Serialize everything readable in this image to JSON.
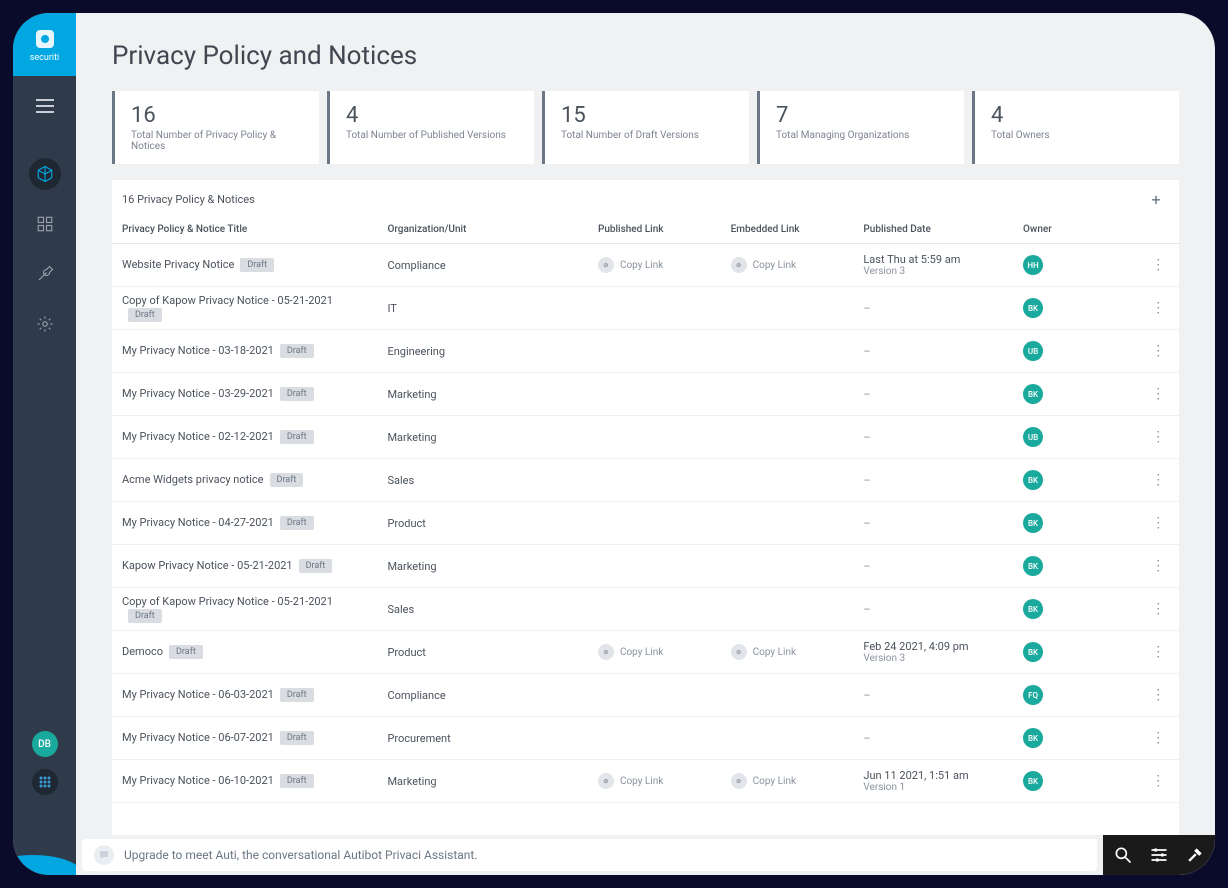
{
  "brand": {
    "name": "securiti"
  },
  "page": {
    "title": "Privacy Policy and Notices"
  },
  "stats": [
    {
      "value": "16",
      "label": "Total Number of Privacy Policy & Notices"
    },
    {
      "value": "4",
      "label": "Total Number of Published Versions"
    },
    {
      "value": "15",
      "label": "Total Number of Draft Versions"
    },
    {
      "value": "7",
      "label": "Total Managing Organizations"
    },
    {
      "value": "4",
      "label": "Total Owners"
    }
  ],
  "table": {
    "caption": "16 Privacy Policy & Notices",
    "columns": [
      "Privacy Policy & Notice Title",
      "Organization/Unit",
      "Published Link",
      "Embedded Link",
      "Published Date",
      "Owner"
    ],
    "copy_link_label": "Copy Link",
    "rows": [
      {
        "title": "Website Privacy Notice",
        "tag": "Draft",
        "org": "Compliance",
        "pub": true,
        "emb": true,
        "date": "Last Thu at 5:59 am",
        "version": "Version 3",
        "owner": "HH"
      },
      {
        "title": "Copy of Kapow Privacy Notice - 05-21-2021",
        "tag": "Draft",
        "org": "IT",
        "pub": false,
        "emb": false,
        "date": "–",
        "version": "",
        "owner": "BK"
      },
      {
        "title": "My Privacy Notice - 03-18-2021",
        "tag": "Draft",
        "org": "Engineering",
        "pub": false,
        "emb": false,
        "date": "–",
        "version": "",
        "owner": "UB"
      },
      {
        "title": "My Privacy Notice - 03-29-2021",
        "tag": "Draft",
        "org": "Marketing",
        "pub": false,
        "emb": false,
        "date": "–",
        "version": "",
        "owner": "BK"
      },
      {
        "title": "My Privacy Notice - 02-12-2021",
        "tag": "Draft",
        "org": "Marketing",
        "pub": false,
        "emb": false,
        "date": "–",
        "version": "",
        "owner": "UB"
      },
      {
        "title": "Acme Widgets privacy notice",
        "tag": "Draft",
        "org": "Sales",
        "pub": false,
        "emb": false,
        "date": "–",
        "version": "",
        "owner": "BK"
      },
      {
        "title": "My Privacy Notice - 04-27-2021",
        "tag": "Draft",
        "org": "Product",
        "pub": false,
        "emb": false,
        "date": "–",
        "version": "",
        "owner": "BK"
      },
      {
        "title": "Kapow Privacy Notice - 05-21-2021",
        "tag": "Draft",
        "org": "Marketing",
        "pub": false,
        "emb": false,
        "date": "–",
        "version": "",
        "owner": "BK"
      },
      {
        "title": "Copy of Kapow Privacy Notice - 05-21-2021",
        "tag": "Draft",
        "org": "Sales",
        "pub": false,
        "emb": false,
        "date": "–",
        "version": "",
        "owner": "BK"
      },
      {
        "title": "Democo",
        "tag": "Draft",
        "org": "Product",
        "pub": true,
        "emb": true,
        "date": "Feb 24 2021, 4:09 pm",
        "version": "Version 3",
        "owner": "BK"
      },
      {
        "title": "My Privacy Notice - 06-03-2021",
        "tag": "Draft",
        "org": "Compliance",
        "pub": false,
        "emb": false,
        "date": "–",
        "version": "",
        "owner": "FQ"
      },
      {
        "title": "My Privacy Notice - 06-07-2021",
        "tag": "Draft",
        "org": "Procurement",
        "pub": false,
        "emb": false,
        "date": "–",
        "version": "",
        "owner": "BK"
      },
      {
        "title": "My Privacy Notice - 06-10-2021",
        "tag": "Draft",
        "org": "Marketing",
        "pub": true,
        "emb": true,
        "date": "Jun 11 2021, 1:51 am",
        "version": "Version 1",
        "owner": "BK"
      }
    ]
  },
  "chat": {
    "placeholder": "Upgrade to meet Auti, the conversational Autibot Privaci Assistant."
  },
  "sidebar": {
    "user": "DB"
  },
  "colors": {
    "brand_accent": "#00a7e1",
    "sidebar_bg": "#2f3a4a",
    "page_bg": "#f0f1f3",
    "text_primary": "#404750",
    "text_secondary": "#7c8491",
    "avatar_teal": "#1aa99d",
    "tag_bg": "#d9dce0",
    "border": "#e6e8eb"
  }
}
